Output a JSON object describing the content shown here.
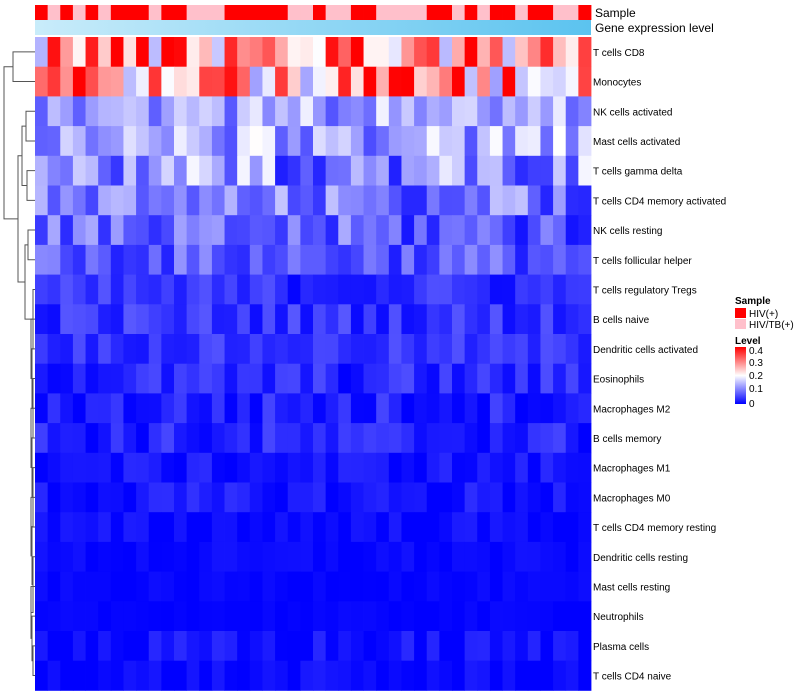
{
  "chart_data": {
    "type": "heatmap",
    "annotation_labels": {
      "sample": "Sample",
      "gene": "Gene expression level"
    },
    "rows": [
      "T cells CD8",
      "Monocytes",
      "NK cells activated",
      "Mast cells activated",
      "T cells gamma delta",
      "T cells CD4 memory activated",
      "NK cells resting",
      "T cells follicular helper",
      "T cells regulatory  Tregs",
      "B cells naive",
      "Dendritic cells activated",
      "Eosinophils",
      "Macrophages M2",
      "B cells memory",
      "Macrophages M1",
      "Macrophages M0",
      "T cells CD4 memory resting",
      "Dendritic cells resting",
      "Mast cells resting",
      "Neutrophils",
      "Plasma cells",
      "T cells CD4 naive"
    ],
    "row_base": [
      0.3,
      0.28,
      0.13,
      0.13,
      0.11,
      0.09,
      0.07,
      0.07,
      0.035,
      0.04,
      0.04,
      0.03,
      0.025,
      0.025,
      0.015,
      0.015,
      0.008,
      0.006,
      0.004,
      0.003,
      0.01,
      0.006
    ],
    "row_spread": [
      0.1,
      0.1,
      0.04,
      0.045,
      0.055,
      0.04,
      0.04,
      0.03,
      0.02,
      0.02,
      0.015,
      0.02,
      0.02,
      0.02,
      0.012,
      0.015,
      0.01,
      0.006,
      0.004,
      0.003,
      0.015,
      0.01
    ],
    "n_samples": 44,
    "sample_groups": [
      "HIV(+)",
      "HIV/TB(+)",
      "HIV(+)",
      "HIV/TB(+)",
      "HIV(+)",
      "HIV/TB(+)",
      "HIV(+)",
      "HIV(+)",
      "HIV(+)",
      "HIV/TB(+)",
      "HIV(+)",
      "HIV(+)",
      "HIV/TB(+)",
      "HIV/TB(+)",
      "HIV/TB(+)",
      "HIV(+)",
      "HIV(+)",
      "HIV(+)",
      "HIV(+)",
      "HIV(+)",
      "HIV/TB(+)",
      "HIV/TB(+)",
      "HIV(+)",
      "HIV/TB(+)",
      "HIV/TB(+)",
      "HIV(+)",
      "HIV(+)",
      "HIV/TB(+)",
      "HIV/TB(+)",
      "HIV/TB(+)",
      "HIV/TB(+)",
      "HIV(+)",
      "HIV(+)",
      "HIV/TB(+)",
      "HIV(+)",
      "HIV/TB(+)",
      "HIV(+)",
      "HIV(+)",
      "HIV/TB(+)",
      "HIV(+)",
      "HIV(+)",
      "HIV/TB(+)",
      "HIV/TB(+)",
      "HIV(+)"
    ],
    "legend": {
      "sample_title": "Sample",
      "sample_entries": [
        {
          "label": "HIV(+)",
          "color": "#ff0000"
        },
        {
          "label": "HIV/TB(+)",
          "color": "#ffc0cb"
        }
      ],
      "level_title": "Level",
      "level_ticks": [
        "0.4",
        "0.3",
        "0.2",
        "0.1",
        "0"
      ],
      "level_range": [
        0,
        0.4
      ]
    },
    "colors": {
      "low": "#0000ff",
      "mid": "#ffffff",
      "high": "#ff0000",
      "gene_light": "#c9ecfa",
      "gene_dark": "#5bc3ef"
    },
    "dendrogram": "rows"
  }
}
